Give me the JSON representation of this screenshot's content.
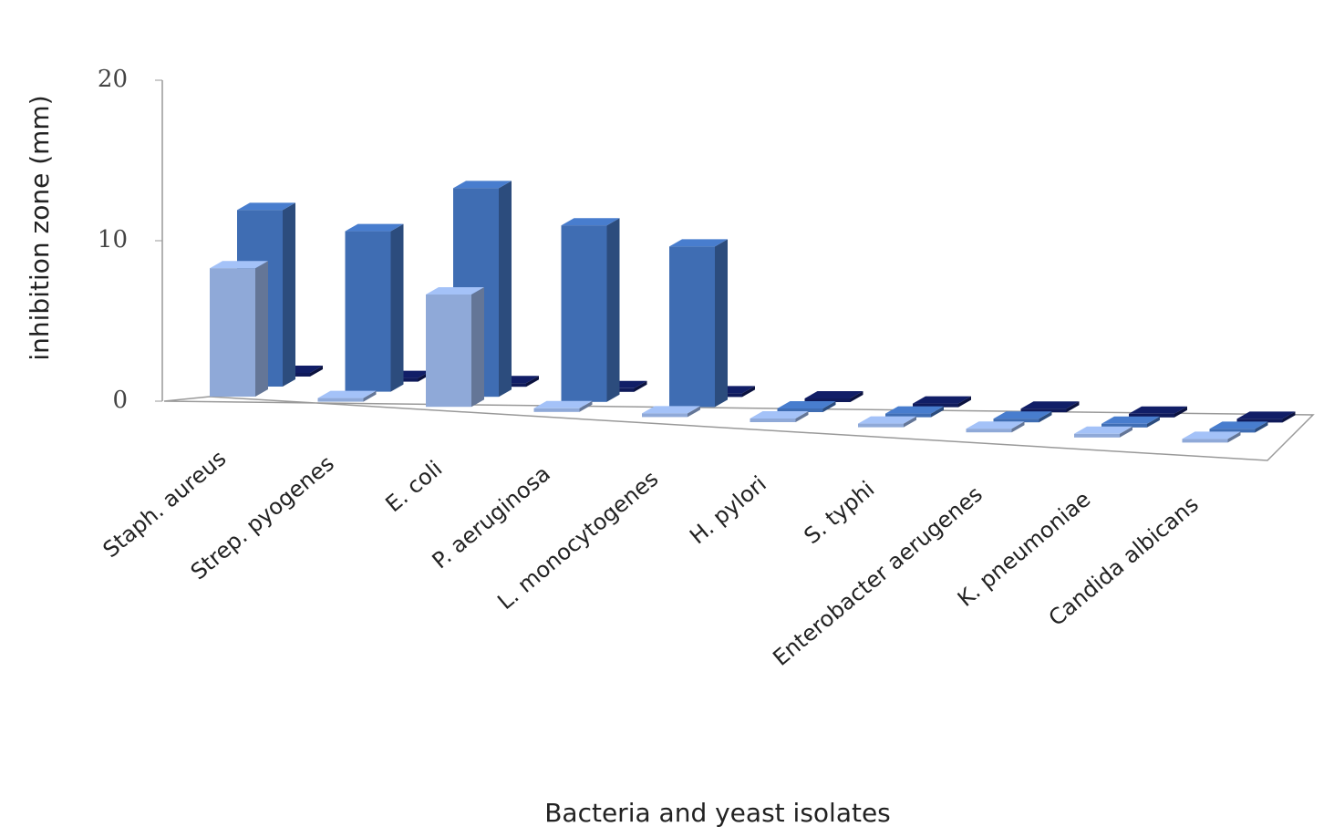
{
  "chart_data": {
    "type": "bar3d",
    "x_label": "Bacteria and yeast isolates",
    "y_label": "inhibition zone  (mm)",
    "categories": [
      "Staph. aureus",
      "Strep. pyogenes",
      "E. coli",
      "P. aeruginosa",
      "L. monocytogenes",
      "H. pylori",
      "S. typhi",
      "Enterobacter aerugenes",
      "K. pneumoniae",
      "Candida albicans"
    ],
    "series": [
      {
        "color": "#8fa9d8",
        "values": [
          8,
          0,
          7,
          0,
          0,
          0,
          0,
          0,
          0,
          0
        ]
      },
      {
        "color": "#3f6db3",
        "values": [
          11,
          10,
          13,
          11,
          10,
          0,
          0,
          0,
          0,
          0
        ]
      },
      {
        "color": "#0f1a5a",
        "values": [
          0,
          0,
          0,
          0,
          0,
          0,
          0,
          0,
          0,
          0
        ]
      }
    ],
    "ylim": [
      0,
      20
    ],
    "yticks": [
      0,
      10,
      20
    ]
  }
}
